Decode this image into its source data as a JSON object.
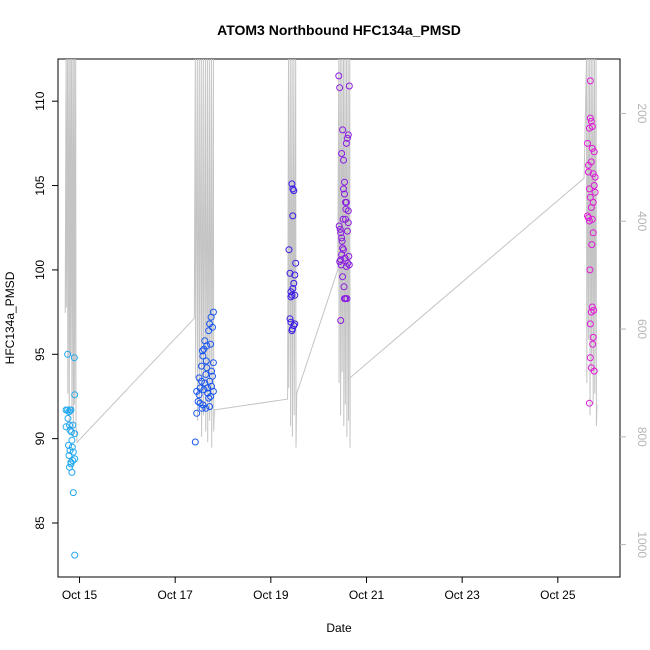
{
  "chart_data": {
    "type": "scatter",
    "title": "ATOM3 Northbound HFC134a_PMSD",
    "xlabel": "Date",
    "ylabel": "HFC134a_PMSD",
    "x_ticks": [
      "Oct 15",
      "Oct 17",
      "Oct 19",
      "Oct 21",
      "Oct 23",
      "Oct 25"
    ],
    "x_tick_days": [
      15,
      17,
      19,
      21,
      23,
      25
    ],
    "xlim": [
      14.55,
      26.3
    ],
    "ylim": [
      81.8,
      112.5
    ],
    "y_ticks": [
      85,
      90,
      95,
      100,
      105,
      110
    ],
    "y2_ticks": [
      200,
      400,
      600,
      800,
      1000
    ],
    "y2lim": [
      1060,
      99
    ],
    "grid": false,
    "point_style": "open-circle",
    "color_scale": [
      "#22a8f0",
      "#1a55f0",
      "#3a1ae6",
      "#8a1ae0",
      "#e01ad8"
    ],
    "series": [
      {
        "color": "#22a8f0",
        "points": [
          [
            14.72,
            91.7
          ],
          [
            14.75,
            91.7
          ],
          [
            14.78,
            91.6
          ],
          [
            14.8,
            91.7
          ],
          [
            14.82,
            91.7
          ],
          [
            14.72,
            90.7
          ],
          [
            14.76,
            91.2
          ],
          [
            14.79,
            90.8
          ],
          [
            14.83,
            90.4
          ],
          [
            14.86,
            90.8
          ],
          [
            14.77,
            89.6
          ],
          [
            14.8,
            89.3
          ],
          [
            14.84,
            89.9
          ],
          [
            14.9,
            90.3
          ],
          [
            14.78,
            89.0
          ],
          [
            14.82,
            88.6
          ],
          [
            14.86,
            88.7
          ],
          [
            14.9,
            88.8
          ],
          [
            14.79,
            88.3
          ],
          [
            14.82,
            88.5
          ],
          [
            14.84,
            88.0
          ],
          [
            14.87,
            89.2
          ],
          [
            14.9,
            92.6
          ],
          [
            14.75,
            95.0
          ],
          [
            14.89,
            94.8
          ],
          [
            14.87,
            86.8
          ],
          [
            14.9,
            83.1
          ],
          [
            14.8,
            90.5
          ],
          [
            14.85,
            89.5
          ]
        ]
      },
      {
        "color": "#1a55f0",
        "points": [
          [
            17.42,
            89.8
          ],
          [
            17.45,
            91.5
          ],
          [
            17.48,
            92.2
          ],
          [
            17.5,
            92.6
          ],
          [
            17.52,
            93.0
          ],
          [
            17.55,
            93.4
          ],
          [
            17.58,
            92.0
          ],
          [
            17.6,
            92.9
          ],
          [
            17.62,
            93.3
          ],
          [
            17.64,
            93.8
          ],
          [
            17.66,
            94.2
          ],
          [
            17.68,
            93.0
          ],
          [
            17.7,
            92.4
          ],
          [
            17.72,
            91.9
          ],
          [
            17.74,
            92.5
          ],
          [
            17.76,
            93.1
          ],
          [
            17.78,
            93.7
          ],
          [
            17.8,
            94.5
          ],
          [
            17.45,
            92.8
          ],
          [
            17.5,
            93.6
          ],
          [
            17.55,
            94.3
          ],
          [
            17.58,
            94.9
          ],
          [
            17.6,
            95.3
          ],
          [
            17.62,
            95.8
          ],
          [
            17.66,
            95.5
          ],
          [
            17.7,
            96.4
          ],
          [
            17.72,
            96.8
          ],
          [
            17.75,
            97.2
          ],
          [
            17.78,
            96.6
          ],
          [
            17.8,
            97.5
          ],
          [
            17.52,
            92.1
          ],
          [
            17.56,
            91.8
          ],
          [
            17.64,
            91.8
          ],
          [
            17.68,
            92.7
          ],
          [
            17.72,
            93.4
          ],
          [
            17.76,
            94.0
          ],
          [
            17.8,
            92.8
          ],
          [
            17.57,
            95.2
          ],
          [
            17.65,
            94.6
          ],
          [
            17.74,
            95.6
          ]
        ]
      },
      {
        "color": "#3a1ae6",
        "points": [
          [
            19.38,
            101.2
          ],
          [
            19.4,
            99.8
          ],
          [
            19.42,
            98.7
          ],
          [
            19.44,
            98.5
          ],
          [
            19.46,
            98.9
          ],
          [
            19.48,
            99.2
          ],
          [
            19.5,
            99.7
          ],
          [
            19.52,
            100.4
          ],
          [
            19.42,
            96.9
          ],
          [
            19.45,
            96.5
          ],
          [
            19.48,
            96.7
          ],
          [
            19.5,
            96.8
          ],
          [
            19.4,
            97.1
          ],
          [
            19.44,
            105.1
          ],
          [
            19.46,
            104.8
          ],
          [
            19.48,
            104.7
          ],
          [
            19.46,
            103.2
          ],
          [
            19.42,
            98.4
          ],
          [
            19.44,
            96.4
          ],
          [
            19.5,
            98.5
          ]
        ]
      },
      {
        "color": "#8a1ae0",
        "points": [
          [
            20.42,
            111.5
          ],
          [
            20.44,
            110.8
          ],
          [
            20.46,
            97.0
          ],
          [
            20.48,
            106.9
          ],
          [
            20.5,
            108.3
          ],
          [
            20.52,
            106.5
          ],
          [
            20.54,
            105.2
          ],
          [
            20.56,
            103.0
          ],
          [
            20.58,
            104.0
          ],
          [
            20.6,
            107.8
          ],
          [
            20.62,
            108.0
          ],
          [
            20.64,
            110.9
          ],
          [
            20.43,
            102.6
          ],
          [
            20.46,
            102.2
          ],
          [
            20.49,
            101.7
          ],
          [
            20.52,
            101.2
          ],
          [
            20.55,
            100.7
          ],
          [
            20.58,
            100.2
          ],
          [
            20.61,
            100.4
          ],
          [
            20.64,
            100.3
          ],
          [
            20.44,
            100.5
          ],
          [
            20.47,
            100.3
          ],
          [
            20.5,
            99.6
          ],
          [
            20.53,
            99.0
          ],
          [
            20.56,
            98.3
          ],
          [
            20.59,
            98.3
          ],
          [
            20.62,
            102.8
          ],
          [
            20.45,
            102.4
          ],
          [
            20.48,
            101.9
          ],
          [
            20.51,
            103.0
          ],
          [
            20.54,
            104.5
          ],
          [
            20.57,
            103.6
          ],
          [
            20.6,
            102.3
          ],
          [
            20.63,
            100.8
          ],
          [
            20.5,
            101.3
          ],
          [
            20.56,
            104.0
          ],
          [
            20.52,
            104.8
          ],
          [
            20.58,
            107.5
          ],
          [
            20.48,
            100.9
          ],
          [
            20.54,
            98.3
          ],
          [
            20.62,
            103.5
          ],
          [
            20.46,
            100.6
          ]
        ]
      },
      {
        "color": "#e01ad8",
        "points": [
          [
            25.62,
            107.5
          ],
          [
            25.64,
            106.2
          ],
          [
            25.66,
            108.4
          ],
          [
            25.68,
            109.0
          ],
          [
            25.7,
            108.8
          ],
          [
            25.72,
            107.2
          ],
          [
            25.74,
            105.7
          ],
          [
            25.76,
            105.0
          ],
          [
            25.78,
            104.6
          ],
          [
            25.66,
            104.8
          ],
          [
            25.68,
            104.3
          ],
          [
            25.7,
            103.7
          ],
          [
            25.72,
            103.0
          ],
          [
            25.74,
            102.2
          ],
          [
            25.64,
            103.1
          ],
          [
            25.66,
            102.9
          ],
          [
            25.68,
            96.8
          ],
          [
            25.7,
            97.5
          ],
          [
            25.72,
            97.8
          ],
          [
            25.74,
            96.0
          ],
          [
            25.76,
            94.0
          ],
          [
            25.68,
            94.8
          ],
          [
            25.7,
            94.2
          ],
          [
            25.66,
            92.1
          ],
          [
            25.68,
            111.2
          ],
          [
            25.72,
            108.5
          ],
          [
            25.76,
            107.0
          ],
          [
            25.78,
            105.5
          ],
          [
            25.64,
            105.8
          ],
          [
            25.7,
            106.4
          ],
          [
            25.74,
            104.0
          ],
          [
            25.62,
            103.2
          ],
          [
            25.75,
            97.6
          ],
          [
            25.73,
            95.6
          ],
          [
            25.67,
            100.0
          ],
          [
            25.71,
            101.5
          ]
        ]
      }
    ]
  }
}
